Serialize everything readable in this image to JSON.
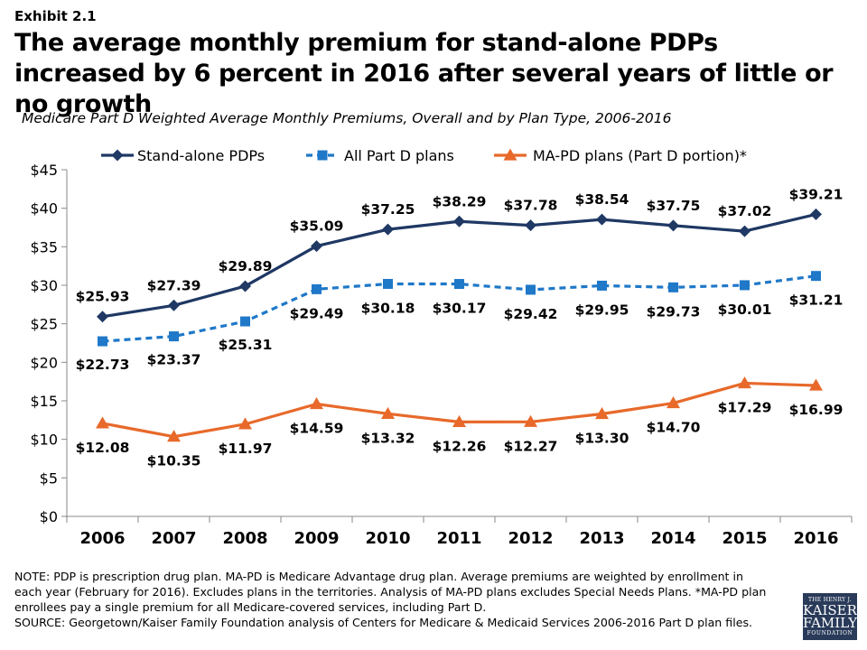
{
  "exhibit": "Exhibit 2.1",
  "title": "The average monthly premium for stand-alone PDPs increased by 6 percent in 2016 after several years of little or no growth",
  "subtitle": "Medicare Part D Weighted Average Monthly Premiums, Overall and by Plan Type, 2006-2016",
  "notes": [
    "NOTE: PDP is prescription drug plan. MA-PD is Medicare Advantage drug plan. Average premiums are weighted by enrollment in",
    "each year (February for 2016). Excludes plans in the territories. Analysis of MA-PD plans excludes Special Needs Plans. *MA-PD plan",
    "enrollees pay a single premium for all Medicare-covered services, including Part D.",
    "SOURCE: Georgetown/Kaiser Family Foundation analysis of Centers for Medicare & Medicaid Services 2006-2016 Part D plan files."
  ],
  "logo": {
    "line1": "THE HENRY J.",
    "line2": "KAISER",
    "line3": "FAMILY",
    "line4": "FOUNDATION",
    "bg": "#2a3b5a"
  },
  "chart_data": {
    "type": "line",
    "title": "Medicare Part D Weighted Average Monthly Premiums, Overall and by Plan Type, 2006-2016",
    "xlabel": "",
    "ylabel": "",
    "categories": [
      "2006",
      "2007",
      "2008",
      "2009",
      "2010",
      "2011",
      "2012",
      "2013",
      "2014",
      "2015",
      "2016"
    ],
    "ylim": [
      0,
      45
    ],
    "yticks": [
      0,
      5,
      10,
      15,
      20,
      25,
      30,
      35,
      40,
      45
    ],
    "ytick_labels": [
      "$0",
      "$5",
      "$10",
      "$15",
      "$20",
      "$25",
      "$30",
      "$35",
      "$40",
      "$45"
    ],
    "grid": false,
    "legend_position": "top",
    "series": [
      {
        "name": "Stand-alone PDPs",
        "color": "#1f3864",
        "marker": "diamond",
        "line_style": "solid",
        "label_position": "above",
        "values": [
          25.93,
          27.39,
          29.89,
          35.09,
          37.25,
          38.29,
          37.78,
          38.54,
          37.75,
          37.02,
          39.21
        ],
        "labels": [
          "$25.93",
          "$27.39",
          "$29.89",
          "$35.09",
          "$37.25",
          "$38.29",
          "$37.78",
          "$38.54",
          "$37.75",
          "$37.02",
          "$39.21"
        ]
      },
      {
        "name": "All Part D plans",
        "color": "#1f78c8",
        "marker": "square",
        "line_style": "dashed",
        "label_position": "mixed",
        "values": [
          22.73,
          23.37,
          25.31,
          29.49,
          30.18,
          30.17,
          29.42,
          29.95,
          29.73,
          30.01,
          31.21
        ],
        "labels": [
          "$22.73",
          "$23.37",
          "$25.31",
          "$29.49",
          "$30.18",
          "$30.17",
          "$29.42",
          "$29.95",
          "$29.73",
          "$30.01",
          "$31.21"
        ]
      },
      {
        "name": "MA-PD plans (Part D portion)*",
        "color": "#e8692a",
        "marker": "triangle",
        "line_style": "solid",
        "label_position": "below",
        "values": [
          12.08,
          10.35,
          11.97,
          14.59,
          13.32,
          12.26,
          12.27,
          13.3,
          14.7,
          17.29,
          16.99
        ],
        "labels": [
          "$12.08",
          "$10.35",
          "$11.97",
          "$14.59",
          "$13.32",
          "$12.26",
          "$12.27",
          "$13.30",
          "$14.70",
          "$17.29",
          "$16.99"
        ]
      }
    ]
  }
}
